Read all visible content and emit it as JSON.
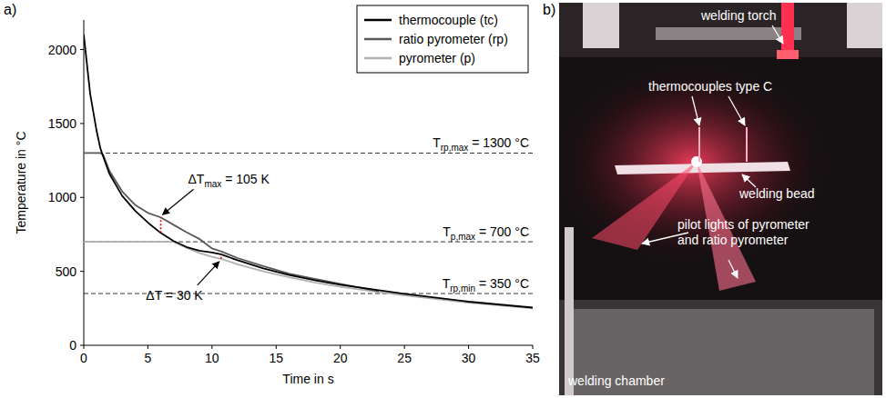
{
  "chart_data": {
    "type": "line",
    "panel_label": "a)",
    "x_label": "Time in s",
    "y_label": "Temperature in °C",
    "x": [
      0,
      0.25,
      0.5,
      1,
      1.3,
      1.5,
      2,
      3,
      4,
      5,
      6,
      7,
      8,
      9,
      10,
      10.7,
      12,
      14,
      16,
      18,
      20,
      23,
      25,
      30,
      35
    ],
    "series": [
      {
        "name": "thermocouple (tc)",
        "color": "#000000",
        "values": [
          2100,
          1900,
          1700,
          1450,
          1330,
          1280,
          1160,
          1010,
          910,
          830,
          760,
          705,
          665,
          640,
          628,
          615,
          575,
          520,
          475,
          440,
          410,
          372,
          348,
          295,
          255
        ]
      },
      {
        "name": "ratio pyrometer (rp)",
        "color": "#595959",
        "values": [
          1300,
          1300,
          1300,
          1300,
          1300,
          1290,
          1180,
          1040,
          950,
          895,
          865,
          815,
          765,
          720,
          655,
          635,
          590,
          535,
          485,
          450,
          415,
          365,
          null,
          null,
          null
        ]
      },
      {
        "name": "pyrometer (p)",
        "color": "#b0b0b0",
        "values": [
          700,
          700,
          700,
          700,
          700,
          700,
          700,
          700,
          700,
          700,
          700,
          700,
          660,
          625,
          598,
          585,
          548,
          500,
          460,
          425,
          395,
          360,
          338,
          288,
          250
        ]
      }
    ],
    "xlim": [
      0,
      35
    ],
    "xticks": [
      0,
      5,
      10,
      15,
      20,
      25,
      30,
      35
    ],
    "ylim": [
      0,
      2200
    ],
    "yticks": [
      0,
      500,
      1000,
      1500,
      2000
    ],
    "grid": false,
    "legend": "top-right",
    "reference_lines": [
      {
        "value": 1300,
        "text_before": "T",
        "subscript": "rp,max",
        "text_after": " = 1300 °C"
      },
      {
        "value": 700,
        "text_before": "T",
        "subscript": "p,max",
        "text_after": " = 700 °C"
      },
      {
        "value": 350,
        "text_before": "T",
        "subscript": "rp,min",
        "text_after": " = 350 °C"
      }
    ],
    "annotations": [
      {
        "text_before": "ΔT",
        "subscript": "max",
        "text_after": " = 105 K",
        "x": 6,
        "y_low": 760,
        "y_high": 865
      },
      {
        "text_before": "ΔT",
        "subscript": "",
        "text_after": " = 30 K",
        "x": 10.7,
        "y_low": 585,
        "y_high": 615
      }
    ]
  },
  "photo": {
    "panel_label": "b)",
    "labels": [
      {
        "lines": [
          "welding torch"
        ]
      },
      {
        "lines": [
          "thermocouples type C"
        ]
      },
      {
        "lines": [
          "welding bead"
        ]
      },
      {
        "lines": [
          "pilot lights of pyrometer",
          "and ratio pyrometer"
        ]
      },
      {
        "lines": [
          "welding chamber"
        ]
      }
    ]
  }
}
